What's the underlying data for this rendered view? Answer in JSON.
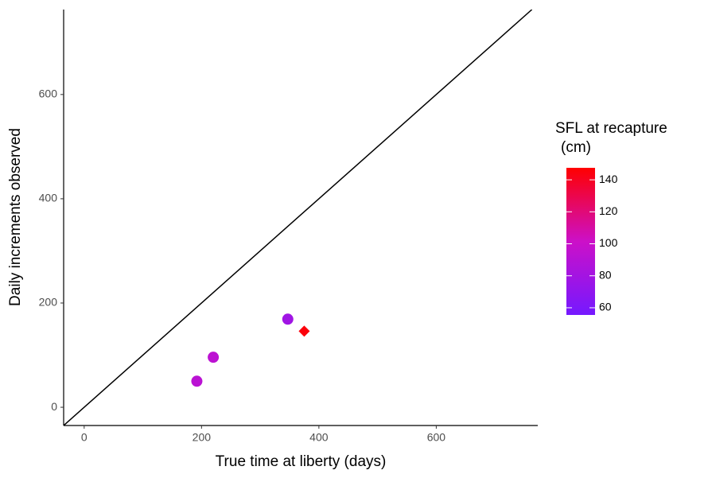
{
  "chart_data": {
    "type": "scatter",
    "x_label": "True time at liberty (days)",
    "y_label": "Daily increments observed",
    "x": [
      192,
      220,
      347,
      375
    ],
    "y": [
      50,
      96,
      169,
      146
    ],
    "color_values": [
      92,
      93,
      78,
      145
    ],
    "shapes": [
      "circle",
      "circle",
      "circle",
      "diamond"
    ],
    "xlim": [
      -35,
      773
    ],
    "ylim": [
      -35,
      763
    ],
    "xticks": [
      0,
      200,
      400,
      600
    ],
    "yticks": [
      0,
      200,
      400,
      600
    ],
    "reference_line": "identity",
    "line_color": "#000000",
    "legend_title": [
      "SFL at recapture",
      "(cm)"
    ],
    "color_scale": {
      "lim": [
        55.5,
        147.5
      ],
      "ticks": [
        60,
        80,
        100,
        120,
        140
      ],
      "colors": [
        "#7519ff",
        "#cc10c8",
        "#ff0000"
      ]
    }
  }
}
